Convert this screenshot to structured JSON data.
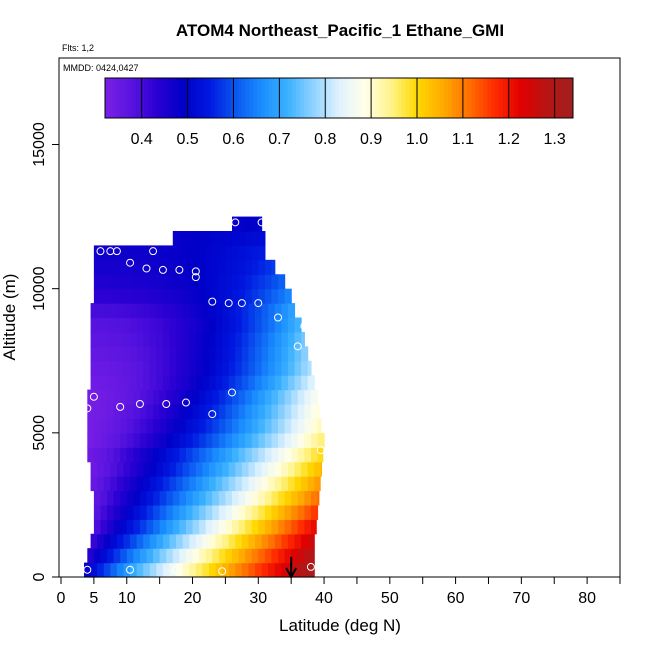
{
  "chart_data": {
    "type": "heatmap",
    "title": "ATOM4 Northeast_Pacific_1 Ethane_GMI",
    "flights_label": "Flts: 1,2",
    "dates_label": "MMDD: 0424,0427",
    "xlabel": "Latitude (deg N)",
    "ylabel": "Altitude (m)",
    "xlim": [
      0,
      85
    ],
    "ylim": [
      0,
      18000
    ],
    "x_ticks": [
      0,
      5,
      10,
      20,
      30,
      40,
      50,
      60,
      70,
      80
    ],
    "y_ticks": [
      0,
      5000,
      10000,
      15000
    ],
    "colorbar": {
      "range": [
        0.32,
        1.34
      ],
      "ticks": [
        0.4,
        0.5,
        0.6,
        0.7,
        0.8,
        0.9,
        1.0,
        1.1,
        1.2,
        1.3
      ],
      "tick_labels": [
        "0.4",
        "0.5",
        "0.6",
        "0.7",
        "0.8",
        "0.9",
        "1.0",
        "1.1",
        "1.2",
        "1.3"
      ],
      "colors": [
        "#7a1fe6",
        "#5a14e0",
        "#2a00d2",
        "#0000c8",
        "#0018e0",
        "#0a55f0",
        "#1a8cff",
        "#3ab0ff",
        "#8ed2ff",
        "#e0f2ff",
        "#ffffe8",
        "#fff48a",
        "#ffd800",
        "#ffaa00",
        "#ff7000",
        "#ff2a00",
        "#e00000",
        "#b81414",
        "#a02020"
      ]
    },
    "field_rows": [
      {
        "alt": 0,
        "lat_min": 3.5,
        "lat_max": 38.5,
        "v_south": 0.45,
        "v_north": 1.33,
        "gamma": 0.8
      },
      {
        "alt": 500,
        "lat_min": 4.0,
        "lat_max": 38.5,
        "v_south": 0.42,
        "v_north": 1.3,
        "gamma": 0.85
      },
      {
        "alt": 1000,
        "lat_min": 4.5,
        "lat_max": 38.5,
        "v_south": 0.4,
        "v_north": 1.26,
        "gamma": 0.9
      },
      {
        "alt": 1500,
        "lat_min": 5.0,
        "lat_max": 38.8,
        "v_south": 0.38,
        "v_north": 1.22,
        "gamma": 0.95
      },
      {
        "alt": 2000,
        "lat_min": 5.0,
        "lat_max": 39.0,
        "v_south": 0.37,
        "v_north": 1.17,
        "gamma": 1.0
      },
      {
        "alt": 2500,
        "lat_min": 5.0,
        "lat_max": 39.2,
        "v_south": 0.36,
        "v_north": 1.12,
        "gamma": 1.05
      },
      {
        "alt": 3000,
        "lat_min": 4.5,
        "lat_max": 39.4,
        "v_south": 0.35,
        "v_north": 1.08,
        "gamma": 1.1
      },
      {
        "alt": 3500,
        "lat_min": 4.5,
        "lat_max": 39.6,
        "v_south": 0.34,
        "v_north": 1.04,
        "gamma": 1.15
      },
      {
        "alt": 4000,
        "lat_min": 4.0,
        "lat_max": 39.8,
        "v_south": 0.34,
        "v_north": 1.0,
        "gamma": 1.2
      },
      {
        "alt": 4500,
        "lat_min": 4.0,
        "lat_max": 40.0,
        "v_south": 0.33,
        "v_north": 0.96,
        "gamma": 1.3
      },
      {
        "alt": 5000,
        "lat_min": 4.0,
        "lat_max": 39.5,
        "v_south": 0.33,
        "v_north": 0.92,
        "gamma": 1.4
      },
      {
        "alt": 5500,
        "lat_min": 4.0,
        "lat_max": 39.2,
        "v_south": 0.33,
        "v_north": 0.9,
        "gamma": 1.5
      },
      {
        "alt": 6000,
        "lat_min": 4.0,
        "lat_max": 39.0,
        "v_south": 0.33,
        "v_north": 0.88,
        "gamma": 1.6
      },
      {
        "alt": 6500,
        "lat_min": 4.5,
        "lat_max": 38.5,
        "v_south": 0.34,
        "v_north": 0.84,
        "gamma": 1.7
      },
      {
        "alt": 7000,
        "lat_min": 4.5,
        "lat_max": 38.0,
        "v_south": 0.35,
        "v_north": 0.8,
        "gamma": 1.8
      },
      {
        "alt": 7500,
        "lat_min": 4.5,
        "lat_max": 37.5,
        "v_south": 0.36,
        "v_north": 0.78,
        "gamma": 1.9
      },
      {
        "alt": 8000,
        "lat_min": 4.5,
        "lat_max": 37.0,
        "v_south": 0.37,
        "v_north": 0.76,
        "gamma": 2.0
      },
      {
        "alt": 8500,
        "lat_min": 4.5,
        "lat_max": 36.5,
        "v_south": 0.38,
        "v_north": 0.73,
        "gamma": 2.1
      },
      {
        "alt": 9000,
        "lat_min": 4.5,
        "lat_max": 35.5,
        "v_south": 0.4,
        "v_north": 0.7,
        "gamma": 2.2
      },
      {
        "alt": 9500,
        "lat_min": 5.0,
        "lat_max": 35.0,
        "v_south": 0.43,
        "v_north": 0.66,
        "gamma": 2.3
      },
      {
        "alt": 10000,
        "lat_min": 5.0,
        "lat_max": 34.0,
        "v_south": 0.45,
        "v_north": 0.62,
        "gamma": 2.4
      },
      {
        "alt": 10500,
        "lat_min": 5.0,
        "lat_max": 32.5,
        "v_south": 0.46,
        "v_north": 0.58,
        "gamma": 2.5
      },
      {
        "alt": 11000,
        "lat_min": 5.0,
        "lat_max": 31.0,
        "v_south": 0.47,
        "v_north": 0.55,
        "gamma": 2.6
      },
      {
        "alt": 11500,
        "lat_min": 17.0,
        "lat_max": 31.0,
        "v_south": 0.48,
        "v_north": 0.52,
        "gamma": 1.0
      },
      {
        "alt": 12000,
        "lat_min": 26.0,
        "lat_max": 30.5,
        "v_south": 0.48,
        "v_north": 0.5,
        "gamma": 1.0
      }
    ],
    "field_row_height": 500,
    "points": [
      {
        "lat": 6,
        "alt": 11300
      },
      {
        "lat": 7.5,
        "alt": 11300
      },
      {
        "lat": 8.5,
        "alt": 11300
      },
      {
        "lat": 10.5,
        "alt": 10900
      },
      {
        "lat": 14,
        "alt": 11300
      },
      {
        "lat": 13,
        "alt": 10700
      },
      {
        "lat": 15.5,
        "alt": 10650
      },
      {
        "lat": 18,
        "alt": 10650
      },
      {
        "lat": 20.5,
        "alt": 10600
      },
      {
        "lat": 20.5,
        "alt": 10400
      },
      {
        "lat": 23,
        "alt": 9550
      },
      {
        "lat": 25.5,
        "alt": 9500
      },
      {
        "lat": 27.5,
        "alt": 9500
      },
      {
        "lat": 30,
        "alt": 9500
      },
      {
        "lat": 33,
        "alt": 9000
      },
      {
        "lat": 26.5,
        "alt": 12300
      },
      {
        "lat": 30.5,
        "alt": 12300
      },
      {
        "lat": 37,
        "alt": 8700
      },
      {
        "lat": 36,
        "alt": 8000
      },
      {
        "lat": 4,
        "alt": 5850
      },
      {
        "lat": 5,
        "alt": 6250
      },
      {
        "lat": 9,
        "alt": 5900
      },
      {
        "lat": 12,
        "alt": 6000
      },
      {
        "lat": 16,
        "alt": 6000
      },
      {
        "lat": 19,
        "alt": 6050
      },
      {
        "lat": 23,
        "alt": 5650
      },
      {
        "lat": 26,
        "alt": 6400
      },
      {
        "lat": 39.5,
        "alt": 4400
      },
      {
        "lat": 4,
        "alt": 250
      },
      {
        "lat": 10.5,
        "alt": 250
      },
      {
        "lat": 17.5,
        "alt": 250
      },
      {
        "lat": 24.5,
        "alt": 200
      },
      {
        "lat": 38,
        "alt": 350
      }
    ],
    "arrow": {
      "lat": 35,
      "alt_top": 700,
      "alt_bottom": 0
    }
  }
}
